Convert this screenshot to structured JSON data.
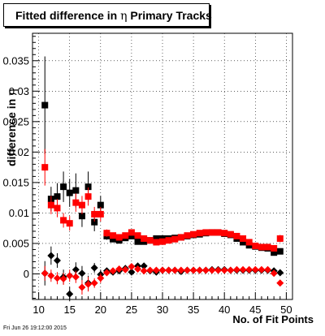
{
  "title": {
    "prefix": "Fitted difference in ",
    "symbol": "η",
    "suffix": " Primary Tracks"
  },
  "axes": {
    "ylabel_prefix": "difference in ",
    "ylabel_symbol": "η",
    "xlabel": "No. of Fit Points"
  },
  "timestamp": "Fri Jun 26 19:12:00 2015",
  "chart_data": {
    "type": "scatter",
    "grid": true,
    "xlim": [
      9,
      51
    ],
    "ylim": [
      -0.0042,
      0.0395
    ],
    "x_ticks": [
      10,
      15,
      20,
      25,
      30,
      35,
      40,
      45,
      50
    ],
    "y_ticks": [
      0,
      0.005,
      0.01,
      0.015,
      0.02,
      0.025,
      0.03,
      0.035
    ],
    "y_tick_labels": [
      "0",
      "0.005",
      "0.01",
      "0.015",
      "0.02",
      "0.025",
      "0.03",
      "0.035"
    ],
    "series": [
      {
        "marker": "square",
        "color": "#000000",
        "x": [
          11,
          12,
          13,
          14,
          15,
          16,
          17,
          18,
          19,
          20,
          21,
          22,
          23,
          24,
          25,
          26,
          27,
          28,
          29,
          30,
          31,
          32,
          33,
          34,
          35,
          36,
          37,
          38,
          39,
          40,
          41,
          42,
          43,
          44,
          45,
          46,
          47,
          48,
          49
        ],
        "y": [
          0.0277,
          0.0123,
          0.0127,
          0.0143,
          0.0133,
          0.0137,
          0.0095,
          0.0143,
          0.0085,
          0.0113,
          0.0062,
          0.0057,
          0.0055,
          0.0059,
          0.0062,
          0.0053,
          0.0053,
          0.0055,
          0.0058,
          0.0058,
          0.0058,
          0.0059,
          0.006,
          0.0062,
          0.0064,
          0.0065,
          0.0067,
          0.0068,
          0.0068,
          0.0066,
          0.0064,
          0.0058,
          0.0052,
          0.0047,
          0.0045,
          0.0043,
          0.0042,
          0.0035,
          0.0037
        ],
        "err": [
          0.008,
          0.002,
          0.0022,
          0.0025,
          0.0023,
          0.0028,
          0.0018,
          0.0025,
          0.0015,
          0.0015,
          0.0006,
          0.0004,
          0.0004,
          0.0004,
          0.0004,
          0.0003,
          0.0003,
          0.0003,
          0.0003,
          0.0003,
          0.0003,
          0.0003,
          0.0003,
          0.0003,
          0.0003,
          0.0003,
          0.0003,
          0.0003,
          0.0003,
          0.0003,
          0.0003,
          0.0003,
          0.0003,
          0.0003,
          0.0003,
          0.0003,
          0.0003,
          0.0003,
          0.0003
        ]
      },
      {
        "marker": "square",
        "color": "#ff0000",
        "x": [
          11,
          12,
          13,
          14,
          15,
          16,
          17,
          18,
          19,
          20,
          21,
          22,
          23,
          24,
          25,
          26,
          27,
          28,
          29,
          30,
          31,
          32,
          33,
          34,
          35,
          36,
          37,
          38,
          39,
          40,
          41,
          42,
          43,
          44,
          45,
          46,
          47,
          48,
          49
        ],
        "y": [
          0.0175,
          0.0113,
          0.0108,
          0.0088,
          0.0083,
          0.0117,
          0.0113,
          0.0127,
          0.0098,
          0.0098,
          0.0067,
          0.0063,
          0.006,
          0.0063,
          0.0068,
          0.0063,
          0.0058,
          0.0055,
          0.0052,
          0.0053,
          0.0055,
          0.0057,
          0.006,
          0.0063,
          0.0065,
          0.0067,
          0.0068,
          0.0068,
          0.0068,
          0.0067,
          0.0065,
          0.0062,
          0.0058,
          0.0052,
          0.0046,
          0.0044,
          0.0044,
          0.0042,
          0.0058
        ],
        "err": [
          0.003,
          0.0015,
          0.0015,
          0.0012,
          0.0012,
          0.0015,
          0.0015,
          0.0015,
          0.0012,
          0.0012,
          0.0006,
          0.0004,
          0.0004,
          0.0004,
          0.0004,
          0.0003,
          0.0003,
          0.0003,
          0.0003,
          0.0003,
          0.0003,
          0.0003,
          0.0003,
          0.0003,
          0.0003,
          0.0003,
          0.0003,
          0.0003,
          0.0003,
          0.0003,
          0.0003,
          0.0003,
          0.0003,
          0.0003,
          0.0003,
          0.0003,
          0.0003,
          0.0003,
          0.0006
        ]
      },
      {
        "marker": "diamond",
        "color": "#000000",
        "x": [
          11,
          12,
          13,
          14,
          15,
          16,
          17,
          18,
          19,
          20,
          21,
          22,
          23,
          24,
          25,
          26,
          27,
          28,
          29,
          30,
          31,
          32,
          33,
          34,
          35,
          36,
          37,
          38,
          39,
          40,
          41,
          42,
          43,
          44,
          45,
          46,
          47,
          48,
          49
        ],
        "y": [
          0.0001,
          0.003,
          0.0022,
          -0.0005,
          -0.0033,
          0.0007,
          0.0001,
          -0.0015,
          0.001,
          -0.0001,
          0.0005,
          0.0003,
          0.0005,
          0.0009,
          0.0003,
          0.0013,
          0.0013,
          0.0005,
          0.0003,
          0.0006,
          0.0006,
          0.0006,
          0.0004,
          0.0006,
          0.0006,
          0.0006,
          0.0006,
          0.0007,
          0.0007,
          0.0007,
          0.0006,
          0.0006,
          0.0006,
          0.0006,
          0.0006,
          0.0006,
          0.0006,
          0.0005,
          0.0002
        ],
        "err": [
          0.002,
          0.0015,
          0.0012,
          0.0012,
          0.0012,
          0.0012,
          0.0012,
          0.0012,
          0.0008,
          0.0008,
          0.0004,
          0.0003,
          0.0003,
          0.0003,
          0.0003,
          0.0003,
          0.0003,
          0.0002,
          0.0002,
          0.0002,
          0.0002,
          0.0002,
          0.0002,
          0.0002,
          0.0002,
          0.0002,
          0.0002,
          0.0002,
          0.0002,
          0.0002,
          0.0002,
          0.0002,
          0.0002,
          0.0002,
          0.0002,
          0.0002,
          0.0002,
          0.0002,
          0.0003
        ]
      },
      {
        "marker": "diamond",
        "color": "#ff0000",
        "x": [
          11,
          12,
          13,
          14,
          15,
          16,
          17,
          18,
          19,
          20,
          21,
          22,
          23,
          24,
          25,
          26,
          27,
          28,
          29,
          30,
          31,
          32,
          33,
          34,
          35,
          36,
          37,
          38,
          39,
          40,
          41,
          42,
          43,
          44,
          45,
          46,
          47,
          48,
          49
        ],
        "y": [
          0.0001,
          -0.0003,
          -0.0007,
          -0.0008,
          -0.0003,
          -0.0005,
          -0.0022,
          -0.0017,
          -0.0015,
          -0.0007,
          0.0002,
          0.0005,
          0.0008,
          0.0007,
          0.0012,
          0.0008,
          0.0005,
          0.0006,
          0.0006,
          0.0006,
          0.0006,
          0.0006,
          0.0006,
          0.0006,
          0.0006,
          0.0006,
          0.0006,
          0.0006,
          0.0006,
          0.0006,
          0.0006,
          0.0007,
          0.0007,
          0.0007,
          0.0007,
          0.0007,
          0.0007,
          0.0001,
          -0.0015
        ],
        "err": [
          0.0012,
          0.001,
          0.001,
          0.001,
          0.001,
          0.001,
          0.0012,
          0.0012,
          0.0008,
          0.0008,
          0.0004,
          0.0003,
          0.0003,
          0.0003,
          0.0003,
          0.0003,
          0.0002,
          0.0002,
          0.0002,
          0.0002,
          0.0002,
          0.0002,
          0.0002,
          0.0002,
          0.0002,
          0.0002,
          0.0002,
          0.0002,
          0.0002,
          0.0002,
          0.0002,
          0.0002,
          0.0002,
          0.0002,
          0.0002,
          0.0002,
          0.0002,
          0.0002,
          0.0005
        ]
      }
    ]
  }
}
